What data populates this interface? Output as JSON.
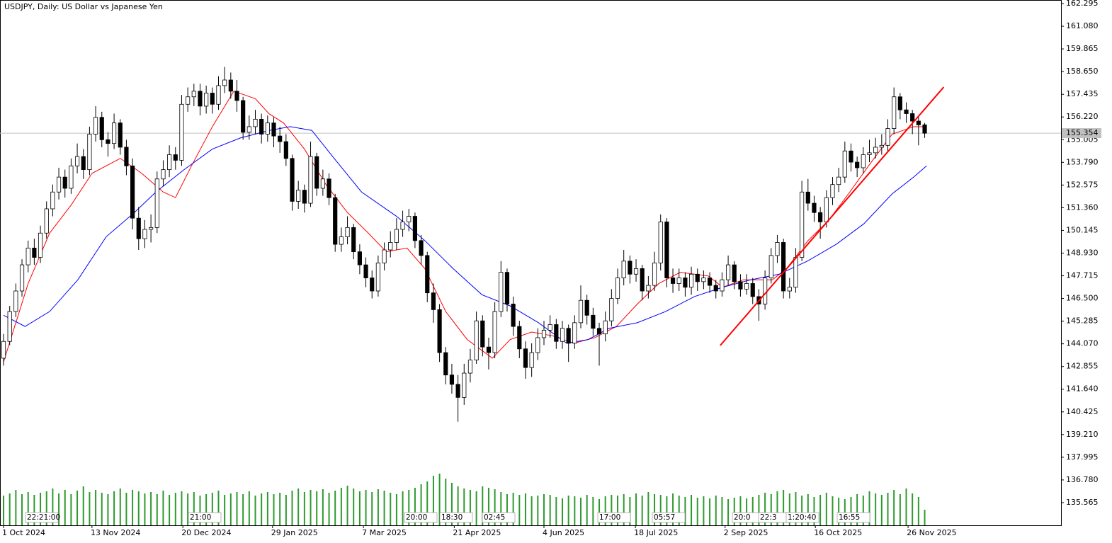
{
  "chart_data": {
    "type": "candlestick",
    "title": "USDJPY, Daily:  US Dollar vs Japanese Yen",
    "xlim": [
      -0.58,
      172.2
    ],
    "ylim": [
      134.35,
      162.485
    ],
    "yticks": [
      162.295,
      {
        "value": 161.08,
        "label": "161.080"
      },
      159.865,
      {
        "value": 158.65,
        "label": "158.650"
      },
      157.435,
      {
        "value": 156.22,
        "label": "156.220"
      },
      155.005,
      {
        "value": 153.79,
        "label": "153.790"
      },
      152.575,
      {
        "value": 151.36,
        "label": "151.360"
      },
      150.145,
      {
        "value": 148.93,
        "label": "148.930"
      },
      147.715,
      {
        "value": 146.5,
        "label": "146.500"
      },
      145.285,
      {
        "value": 144.07,
        "label": "144.070"
      },
      142.855,
      {
        "value": 141.64,
        "label": "141.640"
      },
      140.425,
      {
        "value": 139.21,
        "label": "139.210"
      },
      137.995,
      {
        "value": 136.78,
        "label": "136.780"
      },
      135.565
    ],
    "xticks": [
      {
        "value": 0,
        "label": "1 Oct 2024"
      },
      {
        "value": 14.4,
        "label": "13 Nov 2024"
      },
      {
        "value": 29.2,
        "label": "20 Dec 2024"
      },
      {
        "value": 43.8,
        "label": "29 Jan 2025"
      },
      {
        "value": 58.6,
        "label": "7 Mar 2025"
      },
      {
        "value": 73.4,
        "label": "21 Apr 2025"
      },
      {
        "value": 88,
        "label": "4 Jun 2025"
      },
      {
        "value": 102.9,
        "label": "18 Jul 2025"
      },
      {
        "value": 117.5,
        "label": "2 Sep 2025"
      },
      {
        "value": 132.2,
        "label": "16 Oct 2025"
      },
      {
        "value": 147.3,
        "label": "26 Nov 2025"
      }
    ],
    "current_price": 155.354,
    "up_color": "#ffffff",
    "down_color": "#000000",
    "open": [
      143.3,
      144.2,
      145.8,
      146.9,
      148.3,
      149.2,
      148.7,
      150.0,
      151.3,
      152.2,
      153.0,
      152.4,
      153.6,
      154.1,
      153.4,
      155.3,
      156.2,
      155.0,
      154.8,
      155.9,
      154.6,
      153.6,
      150.8,
      149.7,
      150.2,
      150.3,
      152.9,
      153.4,
      154.2,
      153.9,
      156.9,
      157.3,
      157.6,
      156.8,
      157.5,
      156.9,
      157.9,
      158.2,
      157.6,
      157.1,
      155.4,
      155.7,
      156.1,
      155.3,
      155.9,
      155.2,
      154.9,
      154.0,
      151.7,
      152.3,
      151.6,
      154.1,
      152.4,
      152.9,
      151.9,
      149.4,
      149.8,
      150.3,
      149.0,
      148.3,
      147.6,
      146.9,
      148.4,
      149.1,
      149.5,
      150.2,
      150.6,
      150.9,
      149.6,
      148.8,
      146.8,
      145.9,
      143.6,
      142.4,
      141.9,
      141.2,
      142.5,
      143.2,
      145.3,
      143.9,
      143.6,
      145.8,
      147.9,
      146.2,
      145.0,
      143.8,
      142.8,
      143.6,
      144.4,
      144.8,
      145.1,
      144.2,
      144.9,
      144.1,
      145.2,
      146.4,
      145.6,
      144.9,
      144.6,
      145.3,
      146.5,
      147.6,
      148.5,
      147.8,
      148.1,
      146.9,
      147.2,
      148.4,
      150.6,
      147.6,
      147.3,
      147.6,
      147.1,
      147.8,
      147.4,
      147.6,
      147.2,
      146.9,
      147.5,
      148.3,
      147.4,
      147.0,
      147.3,
      146.6,
      146.2,
      147.6,
      148.8,
      149.5,
      146.9,
      147.1,
      148.7,
      152.2,
      151.6,
      151.1,
      150.6,
      151.9,
      152.6,
      153.0,
      154.4,
      153.8,
      153.5,
      154.2,
      154.3,
      154.6,
      154.7,
      155.6,
      157.3,
      156.6,
      156.4,
      156.0,
      155.8
    ],
    "high": [
      144.6,
      146.1,
      147.3,
      148.6,
      149.6,
      149.7,
      150.4,
      151.7,
      152.6,
      153.5,
      153.4,
      154.0,
      154.8,
      154.5,
      155.7,
      156.8,
      156.5,
      155.4,
      156.4,
      156.1,
      155.0,
      154.0,
      151.4,
      150.7,
      151.0,
      153.3,
      153.9,
      154.7,
      154.6,
      157.4,
      157.8,
      158.0,
      158.0,
      157.9,
      157.8,
      158.4,
      158.9,
      158.6,
      158.2,
      157.3,
      156.3,
      156.6,
      156.4,
      156.3,
      156.2,
      155.7,
      155.3,
      154.2,
      152.8,
      152.6,
      154.9,
      154.3,
      153.4,
      153.2,
      152.1,
      150.3,
      150.9,
      150.5,
      149.4,
      148.7,
      148.0,
      148.8,
      149.5,
      150.1,
      150.8,
      151.2,
      151.3,
      151.1,
      149.9,
      149.0,
      147.3,
      146.2,
      143.9,
      143.0,
      142.4,
      143.0,
      143.8,
      145.8,
      145.6,
      144.4,
      146.3,
      148.5,
      148.1,
      146.6,
      145.3,
      144.2,
      144.1,
      144.9,
      145.3,
      145.6,
      145.4,
      145.3,
      145.1,
      145.6,
      147.2,
      146.7,
      146.0,
      145.2,
      145.8,
      147.0,
      148.1,
      149.1,
      148.8,
      148.6,
      148.3,
      147.7,
      149.0,
      151.0,
      150.8,
      148.1,
      148.1,
      147.9,
      148.2,
      148.1,
      148.0,
      147.9,
      147.5,
      147.9,
      148.8,
      148.5,
      147.8,
      147.8,
      147.6,
      147.0,
      148.0,
      149.2,
      149.9,
      149.7,
      147.6,
      149.2,
      152.8,
      152.9,
      152.0,
      151.4,
      152.3,
      153.0,
      153.5,
      154.9,
      154.8,
      154.1,
      154.6,
      155.0,
      155.1,
      155.3,
      156.1,
      157.8,
      157.5,
      157.0,
      156.6,
      156.3,
      155.9
    ],
    "low": [
      142.9,
      144.0,
      145.5,
      146.6,
      147.9,
      148.3,
      148.4,
      149.7,
      150.9,
      151.8,
      151.9,
      152.1,
      153.2,
      152.9,
      153.1,
      154.9,
      154.6,
      154.1,
      154.5,
      154.2,
      153.1,
      150.2,
      149.1,
      149.2,
      149.5,
      150.0,
      152.5,
      153.0,
      153.4,
      153.6,
      156.5,
      156.8,
      156.3,
      156.4,
      156.4,
      156.6,
      157.5,
      157.2,
      156.5,
      155.0,
      155.0,
      155.3,
      154.8,
      154.9,
      154.6,
      154.3,
      153.6,
      151.2,
      151.3,
      151.1,
      151.4,
      152.0,
      152.0,
      151.5,
      149.0,
      149.0,
      149.4,
      148.6,
      147.8,
      147.1,
      146.5,
      146.6,
      148.0,
      148.7,
      149.1,
      149.8,
      150.1,
      149.2,
      148.3,
      146.3,
      145.2,
      143.1,
      141.9,
      141.4,
      139.9,
      140.8,
      142.0,
      143.0,
      143.4,
      142.7,
      143.3,
      145.5,
      145.8,
      144.5,
      143.3,
      142.2,
      142.3,
      143.2,
      144.0,
      144.4,
      143.8,
      143.8,
      143.1,
      143.8,
      144.9,
      145.1,
      144.5,
      142.9,
      144.2,
      145.0,
      146.2,
      147.2,
      147.3,
      147.4,
      146.4,
      146.5,
      146.9,
      148.0,
      147.1,
      146.8,
      146.9,
      146.6,
      146.7,
      146.9,
      147.0,
      146.8,
      146.5,
      146.6,
      147.2,
      147.0,
      146.6,
      146.7,
      146.2,
      145.3,
      145.9,
      147.3,
      148.4,
      146.5,
      146.5,
      146.8,
      148.5,
      151.2,
      150.6,
      149.7,
      150.3,
      151.5,
      152.2,
      152.7,
      153.3,
      153.0,
      153.2,
      153.8,
      154.0,
      154.2,
      154.4,
      155.3,
      156.1,
      155.9,
      155.3,
      154.7,
      155.1
    ],
    "close": [
      144.2,
      145.8,
      146.9,
      148.3,
      149.2,
      148.7,
      150.0,
      151.3,
      152.2,
      153.0,
      152.4,
      153.6,
      154.1,
      153.4,
      155.3,
      156.2,
      155.0,
      154.8,
      155.9,
      154.6,
      153.6,
      150.8,
      149.7,
      150.2,
      150.3,
      152.9,
      153.4,
      154.2,
      153.9,
      156.9,
      157.3,
      157.6,
      156.8,
      157.5,
      156.9,
      157.9,
      158.2,
      157.6,
      157.1,
      155.4,
      155.7,
      156.1,
      155.3,
      155.9,
      155.2,
      154.9,
      154.0,
      151.7,
      152.3,
      151.6,
      154.1,
      152.4,
      152.9,
      151.9,
      149.4,
      149.8,
      150.3,
      149.0,
      148.3,
      147.6,
      146.9,
      148.4,
      149.1,
      149.5,
      150.2,
      150.6,
      150.9,
      149.6,
      148.8,
      146.8,
      145.9,
      143.6,
      142.4,
      141.9,
      141.2,
      142.5,
      143.2,
      145.3,
      143.9,
      143.6,
      145.8,
      147.9,
      146.2,
      145.0,
      143.8,
      142.8,
      143.6,
      144.4,
      144.8,
      145.1,
      144.2,
      144.9,
      144.1,
      145.2,
      146.4,
      145.6,
      144.9,
      144.6,
      145.3,
      146.5,
      147.6,
      148.5,
      147.8,
      148.1,
      146.9,
      147.2,
      148.4,
      150.6,
      147.6,
      147.3,
      147.6,
      147.1,
      147.8,
      147.4,
      147.6,
      147.2,
      146.9,
      147.5,
      148.3,
      147.4,
      147.0,
      147.3,
      146.6,
      146.2,
      147.6,
      148.8,
      149.5,
      146.9,
      147.1,
      148.7,
      152.2,
      151.6,
      151.1,
      150.6,
      151.9,
      152.6,
      153.0,
      154.4,
      153.8,
      153.5,
      154.2,
      154.3,
      154.6,
      154.7,
      155.6,
      157.3,
      156.6,
      156.4,
      156.0,
      155.8,
      155.35
    ],
    "volume_color": "#2e9a2e",
    "volume_ylim": [
      0,
      742
    ],
    "volume": [
      42,
      45,
      50,
      44,
      47,
      43,
      46,
      48,
      52,
      45,
      50,
      44,
      49,
      55,
      47,
      50,
      46,
      44,
      48,
      52,
      46,
      50,
      48,
      45,
      47,
      44,
      49,
      43,
      46,
      48,
      45,
      47,
      42,
      44,
      46,
      49,
      43,
      45,
      47,
      44,
      48,
      42,
      45,
      47,
      44,
      46,
      43,
      49,
      52,
      47,
      50,
      48,
      51,
      46,
      49,
      53,
      56,
      52,
      48,
      50,
      47,
      51,
      49,
      46,
      44,
      48,
      50,
      53,
      58,
      62,
      70,
      73,
      66,
      60,
      55,
      52,
      50,
      48,
      55,
      53,
      51,
      47,
      44,
      46,
      43,
      45,
      41,
      42,
      44,
      43,
      40,
      38,
      42,
      41,
      39,
      43,
      40,
      37,
      41,
      43,
      42,
      44,
      40,
      45,
      42,
      47,
      44,
      43,
      41,
      45,
      42,
      40,
      43,
      39,
      41,
      38,
      42,
      40,
      37,
      39,
      41,
      38,
      40,
      43,
      46,
      44,
      48,
      50,
      45,
      47,
      42,
      44,
      40,
      43,
      46,
      41,
      39,
      37,
      40,
      44,
      42,
      48,
      45,
      43,
      46,
      50,
      44,
      52,
      45,
      40,
      22
    ],
    "lines": [
      {
        "color": "#ff0000",
        "x": [
          0,
          4,
          7.5,
          11,
          14.4,
          19,
          22.5,
          26,
          28,
          30.6,
          34,
          37.5,
          41,
          43.2,
          45.6,
          49,
          52.5,
          56,
          59.4,
          62.3,
          65.7,
          68.6,
          72,
          75.5,
          79.6,
          82.5,
          86,
          89.4,
          92.9,
          96.3,
          99.8,
          103.2,
          106.7,
          110.2,
          114.8,
          117.1,
          120.5,
          125.2,
          127.5,
          131,
          134.4,
          137.8,
          141.3,
          144.7,
          148.2,
          150.3
        ],
        "values": [
          143.1,
          147.3,
          150,
          151.5,
          153.2,
          154,
          153.2,
          152.2,
          151.9,
          153.6,
          155.7,
          157.6,
          157.2,
          156.4,
          155.9,
          154.5,
          152.6,
          151.1,
          150,
          149,
          149.2,
          148.1,
          145.8,
          144.3,
          143.3,
          144.3,
          144.7,
          144.5,
          144.1,
          144.4,
          145,
          146.2,
          147.3,
          147.9,
          147.7,
          147.1,
          147.5,
          147.5,
          148.1,
          149.6,
          150.7,
          152.2,
          153.8,
          155.3,
          155.7,
          155.7
        ]
      },
      {
        "color": "#0000ff",
        "x": [
          0,
          3.5,
          7.5,
          12.1,
          16.7,
          21.3,
          24.8,
          29.4,
          34,
          38.6,
          43.3,
          46.7,
          50.2,
          53.6,
          58.3,
          64,
          68.6,
          73.2,
          77.9,
          82.5,
          87.1,
          91.7,
          95.2,
          98.6,
          103.2,
          107.8,
          112.5,
          117.1,
          121.7,
          126.3,
          130.9,
          135.6,
          140.1,
          144.7,
          148.2,
          150.3
        ],
        "values": [
          145.6,
          145,
          145.8,
          147.5,
          149.8,
          151.1,
          152.2,
          153.4,
          154.5,
          155.1,
          155.5,
          155.7,
          155.5,
          154.1,
          152.2,
          150.9,
          149.6,
          148.1,
          146.7,
          146.1,
          145.2,
          144.1,
          144.3,
          144.9,
          145.2,
          145.8,
          146.6,
          147.1,
          147.5,
          147.8,
          148.5,
          149.4,
          150.5,
          152.1,
          153,
          153.6
        ]
      }
    ],
    "trendline": {
      "color": "#ff0000",
      "x": [
        116.7,
        153.1
      ],
      "values": [
        143.98,
        157.82
      ]
    },
    "trade_labels": [
      "22:21:00",
      "21:00",
      "20:00",
      "18:30",
      "02:45",
      "17:00",
      "05:57",
      "20:0",
      "22:3",
      "1:20:40",
      "16:55"
    ]
  }
}
